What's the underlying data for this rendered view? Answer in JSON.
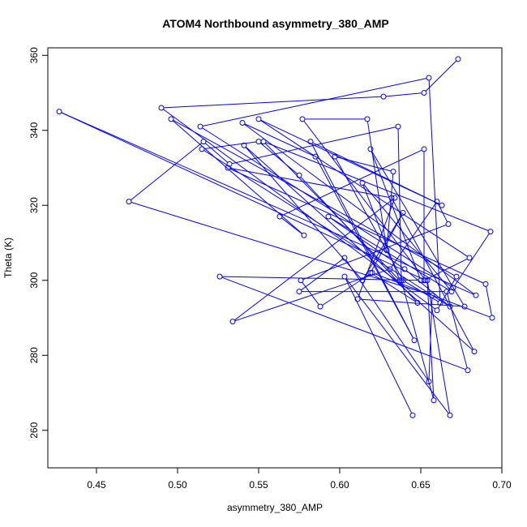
{
  "chart_data": {
    "type": "line",
    "title": "ATOM4 Northbound asymmetry_380_AMP",
    "xlabel": "asymmetry_380_AMP",
    "ylabel": "Theta (K)",
    "xlim": [
      0.42,
      0.7
    ],
    "ylim": [
      250,
      362
    ],
    "x_ticks": [
      0.45,
      0.5,
      0.55,
      0.6,
      0.65,
      0.7
    ],
    "x_tick_labels": [
      "0.45",
      "0.50",
      "0.55",
      "0.60",
      "0.65",
      "0.70"
    ],
    "y_ticks": [
      260,
      280,
      300,
      320,
      340,
      360
    ],
    "y_tick_labels": [
      "260",
      "280",
      "300",
      "320",
      "340",
      "360"
    ],
    "grid": false,
    "series": [
      {
        "color": "#0000ff",
        "marker": "open-circle",
        "line": "solid",
        "x": [
          0.673,
          0.652,
          0.627,
          0.49,
          0.66,
          0.672,
          0.496,
          0.578,
          0.563,
          0.652,
          0.652,
          0.68,
          0.55,
          0.663,
          0.582,
          0.646,
          0.585,
          0.54,
          0.684,
          0.427,
          0.653,
          0.577,
          0.617,
          0.629,
          0.633,
          0.597,
          0.639,
          0.662,
          0.655,
          0.514,
          0.67,
          0.693,
          0.553,
          0.637,
          0.614,
          0.669,
          0.593,
          0.64,
          0.668,
          0.515,
          0.55,
          0.575,
          0.648,
          0.619,
          0.639,
          0.614,
          0.541,
          0.683,
          0.632,
          0.531,
          0.69,
          0.694,
          0.62,
          0.588,
          0.576,
          0.667,
          0.66,
          0.631,
          0.534,
          0.634,
          0.611,
          0.677,
          0.619,
          0.65,
          0.526,
          0.679,
          0.666,
          0.575,
          0.603,
          0.655,
          0.657,
          0.47,
          0.516,
          0.532,
          0.636,
          0.638,
          0.658,
          0.654,
          0.668,
          0.603,
          0.645
        ],
        "y": [
          359,
          350,
          349,
          346,
          292,
          301,
          343,
          312,
          317,
          335,
          300,
          306,
          343,
          320,
          337,
          284,
          333,
          342,
          296,
          345,
          300,
          343,
          343,
          308,
          329,
          333,
          300,
          294,
          354,
          341,
          298,
          313,
          337,
          300,
          326,
          297,
          317,
          303,
          293,
          335,
          337,
          328,
          294,
          302,
          318,
          300,
          336,
          281,
          322,
          330,
          299,
          290,
          302,
          293,
          300,
          315,
          321,
          303,
          289,
          322,
          295,
          293,
          335,
          300,
          301,
          276,
          297,
          297,
          306,
          273,
          296,
          321,
          337,
          331,
          341,
          300,
          268,
          300,
          264,
          301,
          264
        ]
      }
    ]
  }
}
